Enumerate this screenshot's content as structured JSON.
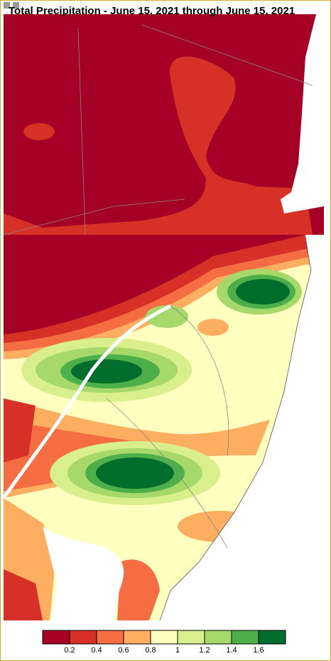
{
  "title": "Total Precipitation - June 15, 2021 through June 15, 2021",
  "legend": {
    "colors": [
      "#a50026",
      "#d73027",
      "#f46d43",
      "#fdae61",
      "#ffffbf",
      "#d9ef8b",
      "#a6d96a",
      "#4daf4a",
      "#006d2c"
    ],
    "labels": [
      "0.2",
      "0.4",
      "0.6",
      "0.8",
      "1",
      "1.2",
      "1.4",
      "1.6"
    ]
  }
}
